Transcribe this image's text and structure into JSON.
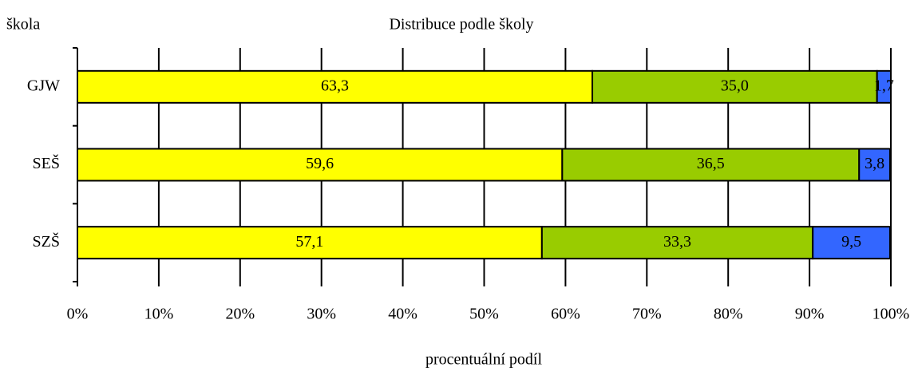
{
  "chart_data": {
    "type": "stacked-barh",
    "title": "Distribuce podle školy",
    "y_label": "škola",
    "x_label": "procentuální podíl",
    "categories": [
      "GJW",
      "SEŠ",
      "SZŠ"
    ],
    "series": [
      {
        "color": "#ffff00",
        "values": [
          63.3,
          59.6,
          57.1
        ],
        "value_labels": [
          "63,3",
          "59,6",
          "57,1"
        ]
      },
      {
        "color": "#99cc00",
        "values": [
          35.0,
          36.5,
          33.3
        ],
        "value_labels": [
          "35,0",
          "36,5",
          "33,3"
        ]
      },
      {
        "color": "#3366ff",
        "values": [
          1.7,
          3.8,
          9.5
        ],
        "value_labels": [
          "1,7",
          "3,8",
          "9,5"
        ]
      }
    ],
    "xlim": [
      0,
      100
    ],
    "xticks": [
      {
        "value": 0,
        "label": "0%"
      },
      {
        "value": 10,
        "label": "10%"
      },
      {
        "value": 20,
        "label": "20%"
      },
      {
        "value": 30,
        "label": "30%"
      },
      {
        "value": 40,
        "label": "40%"
      },
      {
        "value": 50,
        "label": "50%"
      },
      {
        "value": 60,
        "label": "60%"
      },
      {
        "value": 70,
        "label": "70%"
      },
      {
        "value": 80,
        "label": "80%"
      },
      {
        "value": 90,
        "label": "90%"
      },
      {
        "value": 100,
        "label": "100%"
      }
    ],
    "grid": true
  }
}
